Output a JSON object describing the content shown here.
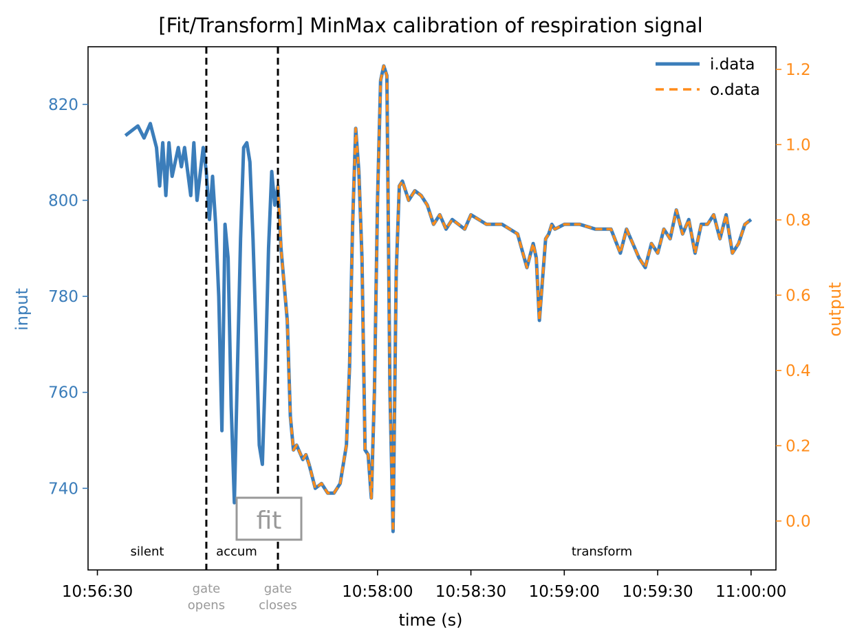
{
  "chart_data": {
    "type": "line",
    "title": "[Fit/Transform] MinMax calibration of respiration signal",
    "xlabel": "time (s)",
    "ylabel": "input",
    "ylabel_right": "output",
    "x_unit": "time of day (HH:MM:SS)",
    "xlim": [
      "10:56:27",
      "11:00:08"
    ],
    "ylim": [
      723,
      832
    ],
    "ylim_right": [
      -0.13,
      1.26
    ],
    "x_ticks": [
      "10:56:30",
      "10:58:00",
      "10:58:30",
      "10:59:00",
      "10:59:30",
      "11:00:00"
    ],
    "y_ticks": [
      740,
      760,
      780,
      800,
      820
    ],
    "y_ticks_right": [
      "0.0",
      "0.2",
      "0.4",
      "0.6",
      "0.8",
      "1.0",
      "1.2"
    ],
    "grid": false,
    "legend": {
      "position": "top-right"
    },
    "colors": {
      "input": "#3b7dba",
      "output": "#ff8c1a",
      "axis_left": "#3b7dba",
      "axis_right": "#ff8c1a",
      "annotation": "#999999"
    },
    "vlines": [
      {
        "x": "10:57:05",
        "style": "dashed",
        "label": [
          "gate",
          "opens"
        ]
      },
      {
        "x": "10:57:28",
        "style": "dashed",
        "label": [
          "gate",
          "closes"
        ]
      }
    ],
    "region_labels": [
      "silent",
      "accum",
      "transform"
    ],
    "fit_box": "fit",
    "series": [
      {
        "name": "i.data",
        "axis": "left",
        "style": "solid",
        "x": [
          "10:56:39",
          "10:56:41",
          "10:56:43",
          "10:56:45",
          "10:56:47",
          "10:56:49",
          "10:56:50",
          "10:56:51",
          "10:56:52",
          "10:56:53",
          "10:56:54",
          "10:56:56",
          "10:56:57",
          "10:56:58",
          "10:57:00",
          "10:57:01",
          "10:57:02",
          "10:57:04",
          "10:57:05",
          "10:57:06",
          "10:57:07",
          "10:57:08",
          "10:57:09",
          "10:57:10",
          "10:57:11",
          "10:57:12",
          "10:57:13",
          "10:57:14",
          "10:57:15",
          "10:57:16",
          "10:57:17",
          "10:57:18",
          "10:57:19",
          "10:57:20",
          "10:57:21",
          "10:57:22",
          "10:57:23",
          "10:57:24",
          "10:57:25",
          "10:57:26",
          "10:57:27",
          "10:57:28",
          "10:57:29",
          "10:57:31",
          "10:57:32",
          "10:57:33",
          "10:57:34",
          "10:57:36",
          "10:57:37",
          "10:57:38",
          "10:57:40",
          "10:57:42",
          "10:57:44",
          "10:57:46",
          "10:57:48",
          "10:57:50",
          "10:57:51",
          "10:57:52",
          "10:57:53",
          "10:57:54",
          "10:57:55",
          "10:57:56",
          "10:57:57",
          "10:57:58",
          "10:57:59",
          "10:58:00",
          "10:58:01",
          "10:58:02",
          "10:58:03",
          "10:58:04",
          "10:58:05",
          "10:58:06",
          "10:58:07",
          "10:58:08",
          "10:58:10",
          "10:58:12",
          "10:58:14",
          "10:58:16",
          "10:58:18",
          "10:58:20",
          "10:58:22",
          "10:58:24",
          "10:58:26",
          "10:58:28",
          "10:58:30",
          "10:58:35",
          "10:58:40",
          "10:58:45",
          "10:58:48",
          "10:58:50",
          "10:58:51",
          "10:58:52",
          "10:58:54",
          "10:58:55",
          "10:58:56",
          "10:58:57",
          "10:59:00",
          "10:59:05",
          "10:59:10",
          "10:59:15",
          "10:59:18",
          "10:59:20",
          "10:59:22",
          "10:59:24",
          "10:59:26",
          "10:59:28",
          "10:59:30",
          "10:59:32",
          "10:59:34",
          "10:59:36",
          "10:59:38",
          "10:59:40",
          "10:59:42",
          "10:59:44",
          "10:59:46",
          "10:59:48",
          "10:59:50",
          "10:59:52",
          "10:59:54",
          "10:59:56",
          "10:59:58",
          "11:00:00"
        ],
        "values": [
          813.5,
          814.5,
          815.5,
          813,
          816,
          811,
          803,
          812,
          801,
          812,
          805,
          811,
          807,
          811,
          801,
          812,
          800,
          811,
          806,
          796,
          805,
          795,
          780,
          752,
          795,
          788,
          757,
          737,
          765,
          792,
          811,
          812,
          808,
          792,
          772,
          749,
          745,
          765,
          790,
          806,
          799,
          803,
          790,
          775,
          755,
          748,
          749,
          746,
          747,
          745,
          740,
          741,
          739,
          739,
          741,
          749,
          765,
          795,
          815,
          806,
          788,
          748,
          747,
          738,
          760,
          800,
          825,
          828,
          826,
          760,
          731,
          785,
          803,
          804,
          800,
          802,
          801,
          799,
          795,
          797,
          794,
          796,
          795,
          794,
          797,
          795,
          795,
          793,
          786,
          791,
          788,
          775,
          792,
          793,
          795,
          794,
          795,
          795,
          794,
          794,
          789,
          794,
          791,
          788,
          786,
          791,
          789,
          794,
          792,
          798,
          793,
          796,
          789,
          795,
          795,
          797,
          792,
          797,
          789,
          791,
          795,
          796
        ]
      },
      {
        "name": "o.data",
        "axis": "left",
        "style": "dashed",
        "x": [
          "10:57:28",
          "10:57:29",
          "10:57:31",
          "10:57:32",
          "10:57:33",
          "10:57:34",
          "10:57:36",
          "10:57:37",
          "10:57:38",
          "10:57:40",
          "10:57:42",
          "10:57:44",
          "10:57:46",
          "10:57:48",
          "10:57:50",
          "10:57:51",
          "10:57:52",
          "10:57:53",
          "10:57:54",
          "10:57:55",
          "10:57:56",
          "10:57:57",
          "10:57:58",
          "10:57:59",
          "10:58:00",
          "10:58:01",
          "10:58:02",
          "10:58:03",
          "10:58:04",
          "10:58:05",
          "10:58:06",
          "10:58:07",
          "10:58:08",
          "10:58:10",
          "10:58:12",
          "10:58:14",
          "10:58:16",
          "10:58:18",
          "10:58:20",
          "10:58:22",
          "10:58:24",
          "10:58:26",
          "10:58:28",
          "10:58:30",
          "10:58:35",
          "10:58:40",
          "10:58:45",
          "10:58:48",
          "10:58:50",
          "10:58:51",
          "10:58:52",
          "10:58:54",
          "10:58:55",
          "10:58:56",
          "10:58:57",
          "10:59:00",
          "10:59:05",
          "10:59:10",
          "10:59:15",
          "10:59:18",
          "10:59:20",
          "10:59:22",
          "10:59:24",
          "10:59:26",
          "10:59:28",
          "10:59:30",
          "10:59:32",
          "10:59:34",
          "10:59:36",
          "10:59:38",
          "10:59:40",
          "10:59:42",
          "10:59:44",
          "10:59:46",
          "10:59:48",
          "10:59:50",
          "10:59:52",
          "10:59:54",
          "10:59:56",
          "10:59:58",
          "11:00:00"
        ],
        "values": [
          803,
          790,
          775,
          755,
          748,
          749,
          746,
          747,
          745,
          740,
          741,
          739,
          739,
          741,
          749,
          765,
          795,
          815,
          806,
          788,
          748,
          747,
          738,
          760,
          800,
          825,
          828,
          826,
          760,
          731,
          785,
          803,
          804,
          800,
          802,
          801,
          799,
          795,
          797,
          794,
          796,
          795,
          794,
          797,
          795,
          795,
          793,
          786,
          791,
          788,
          775,
          792,
          793,
          795,
          794,
          795,
          795,
          794,
          794,
          789,
          794,
          791,
          788,
          786,
          791,
          789,
          794,
          792,
          798,
          793,
          796,
          789,
          795,
          795,
          797,
          792,
          797,
          789,
          791,
          795,
          796
        ]
      }
    ]
  }
}
